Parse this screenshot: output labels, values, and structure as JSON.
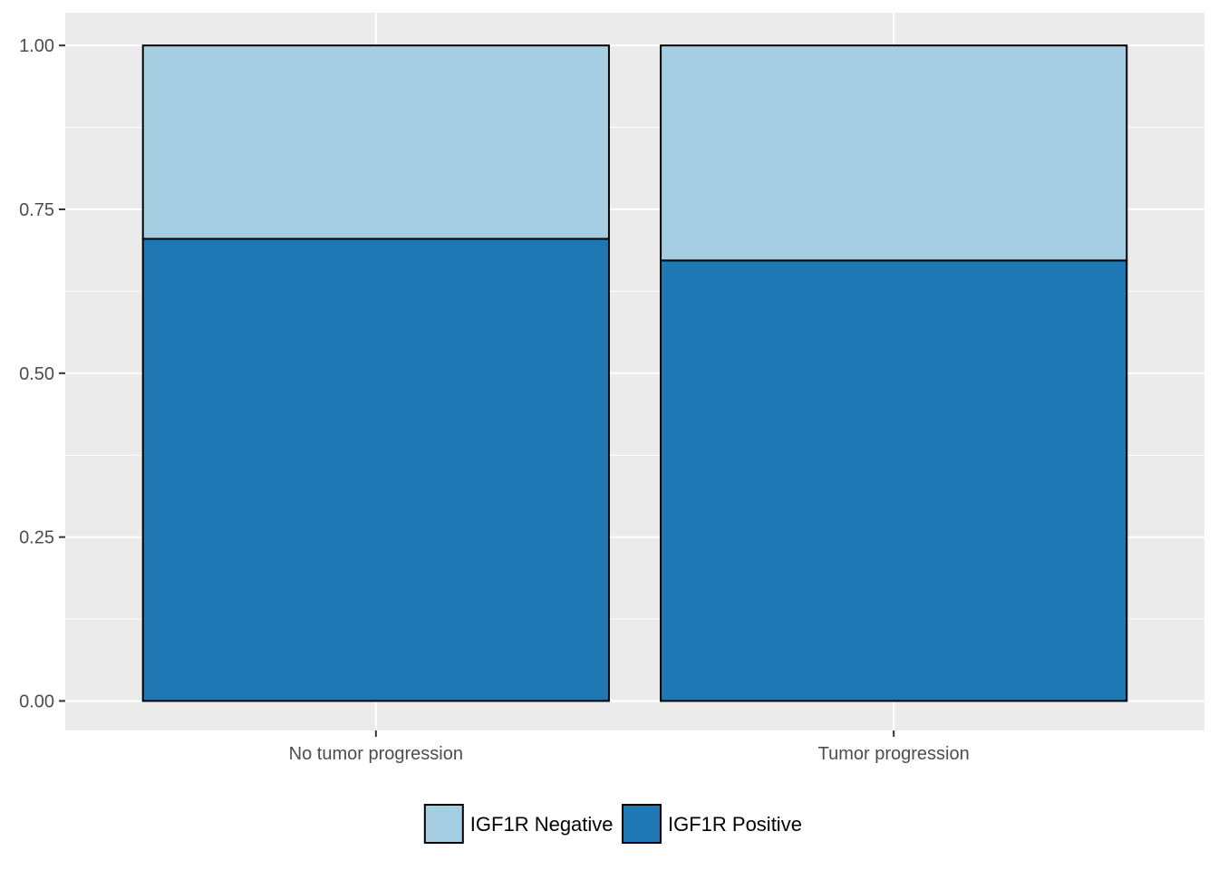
{
  "chart_data": {
    "type": "bar",
    "stacked": true,
    "categories": [
      "No tumor progression",
      "Tumor progression"
    ],
    "series": [
      {
        "name": "IGF1R Positive",
        "values": [
          0.705,
          0.672
        ],
        "color": "#1f78b4"
      },
      {
        "name": "IGF1R Negative",
        "values": [
          0.295,
          0.328
        ],
        "color": "#a6cee3"
      }
    ],
    "legend": {
      "position": "bottom",
      "items": [
        {
          "label": "IGF1R Negative",
          "color": "#a6cee3"
        },
        {
          "label": "IGF1R Positive",
          "color": "#1f78b4"
        }
      ]
    },
    "y_ticks": [
      "0.00",
      "0.25",
      "0.50",
      "0.75",
      "1.00"
    ],
    "ylim": [
      -0.045,
      1.05
    ],
    "grid": true,
    "panel_background": "#ebebeb",
    "title": "",
    "xlabel": "",
    "ylabel": ""
  }
}
